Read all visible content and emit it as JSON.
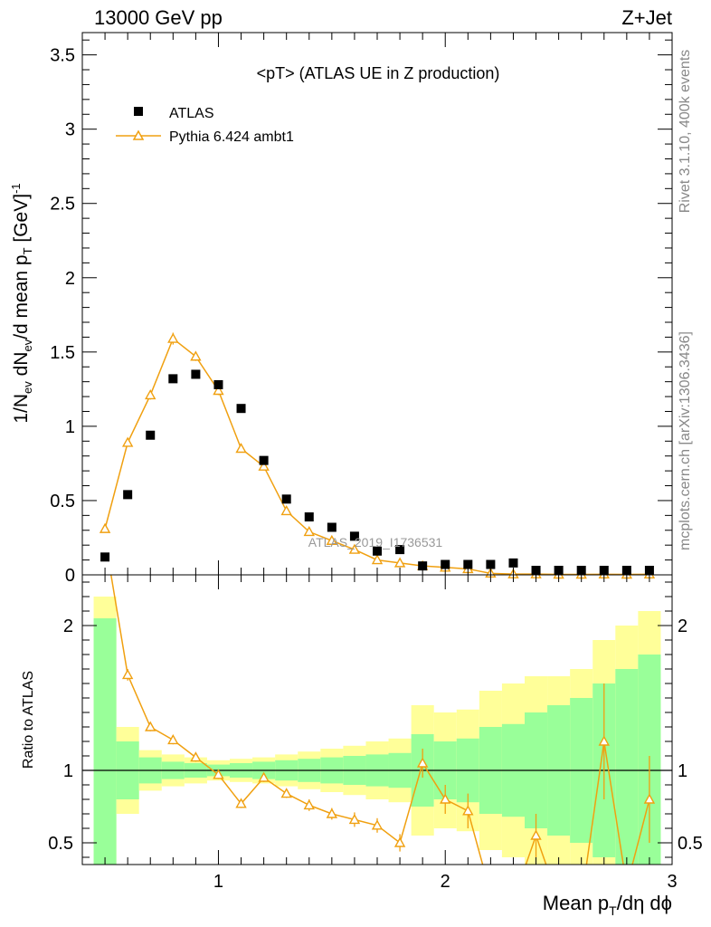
{
  "header": {
    "left": "13000 GeV pp",
    "right": "Z+Jet"
  },
  "side_labels": {
    "rivet": "Rivet 3.1.10,  400k events",
    "mcplots": "mcplots.cern.ch [arXiv:1306.3436]"
  },
  "watermark": "ATLAS_2019_I1736531",
  "colors": {
    "data": "#000000",
    "mc": "#f0a010",
    "band_inner": "#99ff99",
    "band_outer": "#ffff99"
  },
  "chart_data": [
    {
      "type": "scatter",
      "panel": "main",
      "title": "<pT> (ATLAS UE in Z production)",
      "ylabel": "1/N_ev dN_ev/d mean p_T [GeV]^-1",
      "xlim": [
        0.4,
        3.0
      ],
      "ylim": [
        0,
        3.65
      ],
      "yticks": [
        "0",
        "0.5",
        "1",
        "1.5",
        "2",
        "2.5",
        "3",
        "3.5"
      ],
      "legend_position": "top-left",
      "x": [
        0.5,
        0.6,
        0.7,
        0.8,
        0.9,
        1.0,
        1.1,
        1.2,
        1.3,
        1.4,
        1.5,
        1.6,
        1.7,
        1.8,
        1.9,
        2.0,
        2.1,
        2.2,
        2.3,
        2.4,
        2.5,
        2.6,
        2.7,
        2.8,
        2.9
      ],
      "series": [
        {
          "name": "ATLAS",
          "marker": "square",
          "values": [
            0.12,
            0.54,
            0.94,
            1.32,
            1.35,
            1.28,
            1.12,
            0.77,
            0.51,
            0.39,
            0.32,
            0.26,
            0.16,
            0.17,
            0.06,
            0.07,
            0.07,
            0.07,
            0.08,
            0.03,
            0.02,
            0.02,
            0.01,
            0.02,
            0.005
          ]
        },
        {
          "name": "Pythia 6.424 ambt1",
          "marker": "open-triangle",
          "values": [
            0.31,
            0.89,
            1.21,
            1.59,
            1.47,
            1.24,
            0.85,
            0.73,
            0.43,
            0.29,
            0.23,
            0.17,
            0.1,
            0.08,
            0.06,
            0.05,
            0.04,
            0.01,
            0.005,
            0.005,
            0.003,
            0.003,
            0.004,
            0.003,
            0.004
          ],
          "errors": [
            0.01,
            0.02,
            0.03,
            0.04,
            0.03,
            0.03,
            0.02,
            0.02,
            0.01,
            0.01,
            0.01,
            0.01,
            0.005,
            0.005,
            0.005,
            0.005,
            0.004,
            0.003,
            0.002,
            0.002,
            0.002,
            0.002,
            0.002,
            0.002,
            0.002
          ]
        }
      ]
    },
    {
      "type": "line",
      "panel": "ratio",
      "xlabel": "Mean p_T/dη dϕ",
      "ylabel": "Ratio to ATLAS",
      "xlim": [
        0.4,
        3.0
      ],
      "ylim": [
        0.35,
        2.35
      ],
      "yticks": [
        "0.5",
        "1",
        "2"
      ],
      "xticks": [
        "1",
        "2",
        "3"
      ],
      "x": [
        0.5,
        0.6,
        0.7,
        0.8,
        0.9,
        1.0,
        1.1,
        1.2,
        1.3,
        1.4,
        1.5,
        1.6,
        1.7,
        1.8,
        1.9,
        2.0,
        2.1,
        2.2,
        2.3,
        2.4,
        2.5,
        2.6,
        2.7,
        2.8,
        2.9
      ],
      "band_inner_halfwidth": [
        1.05,
        0.2,
        0.09,
        0.06,
        0.05,
        0.04,
        0.05,
        0.06,
        0.07,
        0.08,
        0.09,
        0.1,
        0.11,
        0.12,
        0.25,
        0.2,
        0.22,
        0.3,
        0.32,
        0.4,
        0.45,
        0.5,
        0.6,
        0.7,
        0.8
      ],
      "band_outer_halfwidth": [
        1.2,
        0.3,
        0.14,
        0.11,
        0.09,
        0.07,
        0.08,
        0.09,
        0.11,
        0.13,
        0.15,
        0.17,
        0.2,
        0.22,
        0.45,
        0.4,
        0.42,
        0.55,
        0.6,
        0.65,
        0.65,
        0.7,
        0.9,
        1.0,
        1.1
      ],
      "series": [
        {
          "name": "Pythia 6.424 ambt1",
          "values": [
            2.6,
            1.66,
            1.3,
            1.21,
            1.09,
            0.97,
            0.77,
            0.95,
            0.84,
            0.76,
            0.7,
            0.66,
            0.62,
            0.5,
            1.05,
            0.8,
            0.72,
            0.15,
            0.1,
            0.55,
            0.1,
            0.1,
            1.2,
            0.2,
            0.8
          ],
          "errors": [
            0.05,
            0.04,
            0.03,
            0.03,
            0.03,
            0.03,
            0.03,
            0.03,
            0.03,
            0.04,
            0.04,
            0.05,
            0.05,
            0.06,
            0.1,
            0.1,
            0.12,
            0.1,
            0.1,
            0.15,
            0.1,
            0.1,
            0.4,
            0.3,
            0.3
          ]
        }
      ]
    }
  ]
}
